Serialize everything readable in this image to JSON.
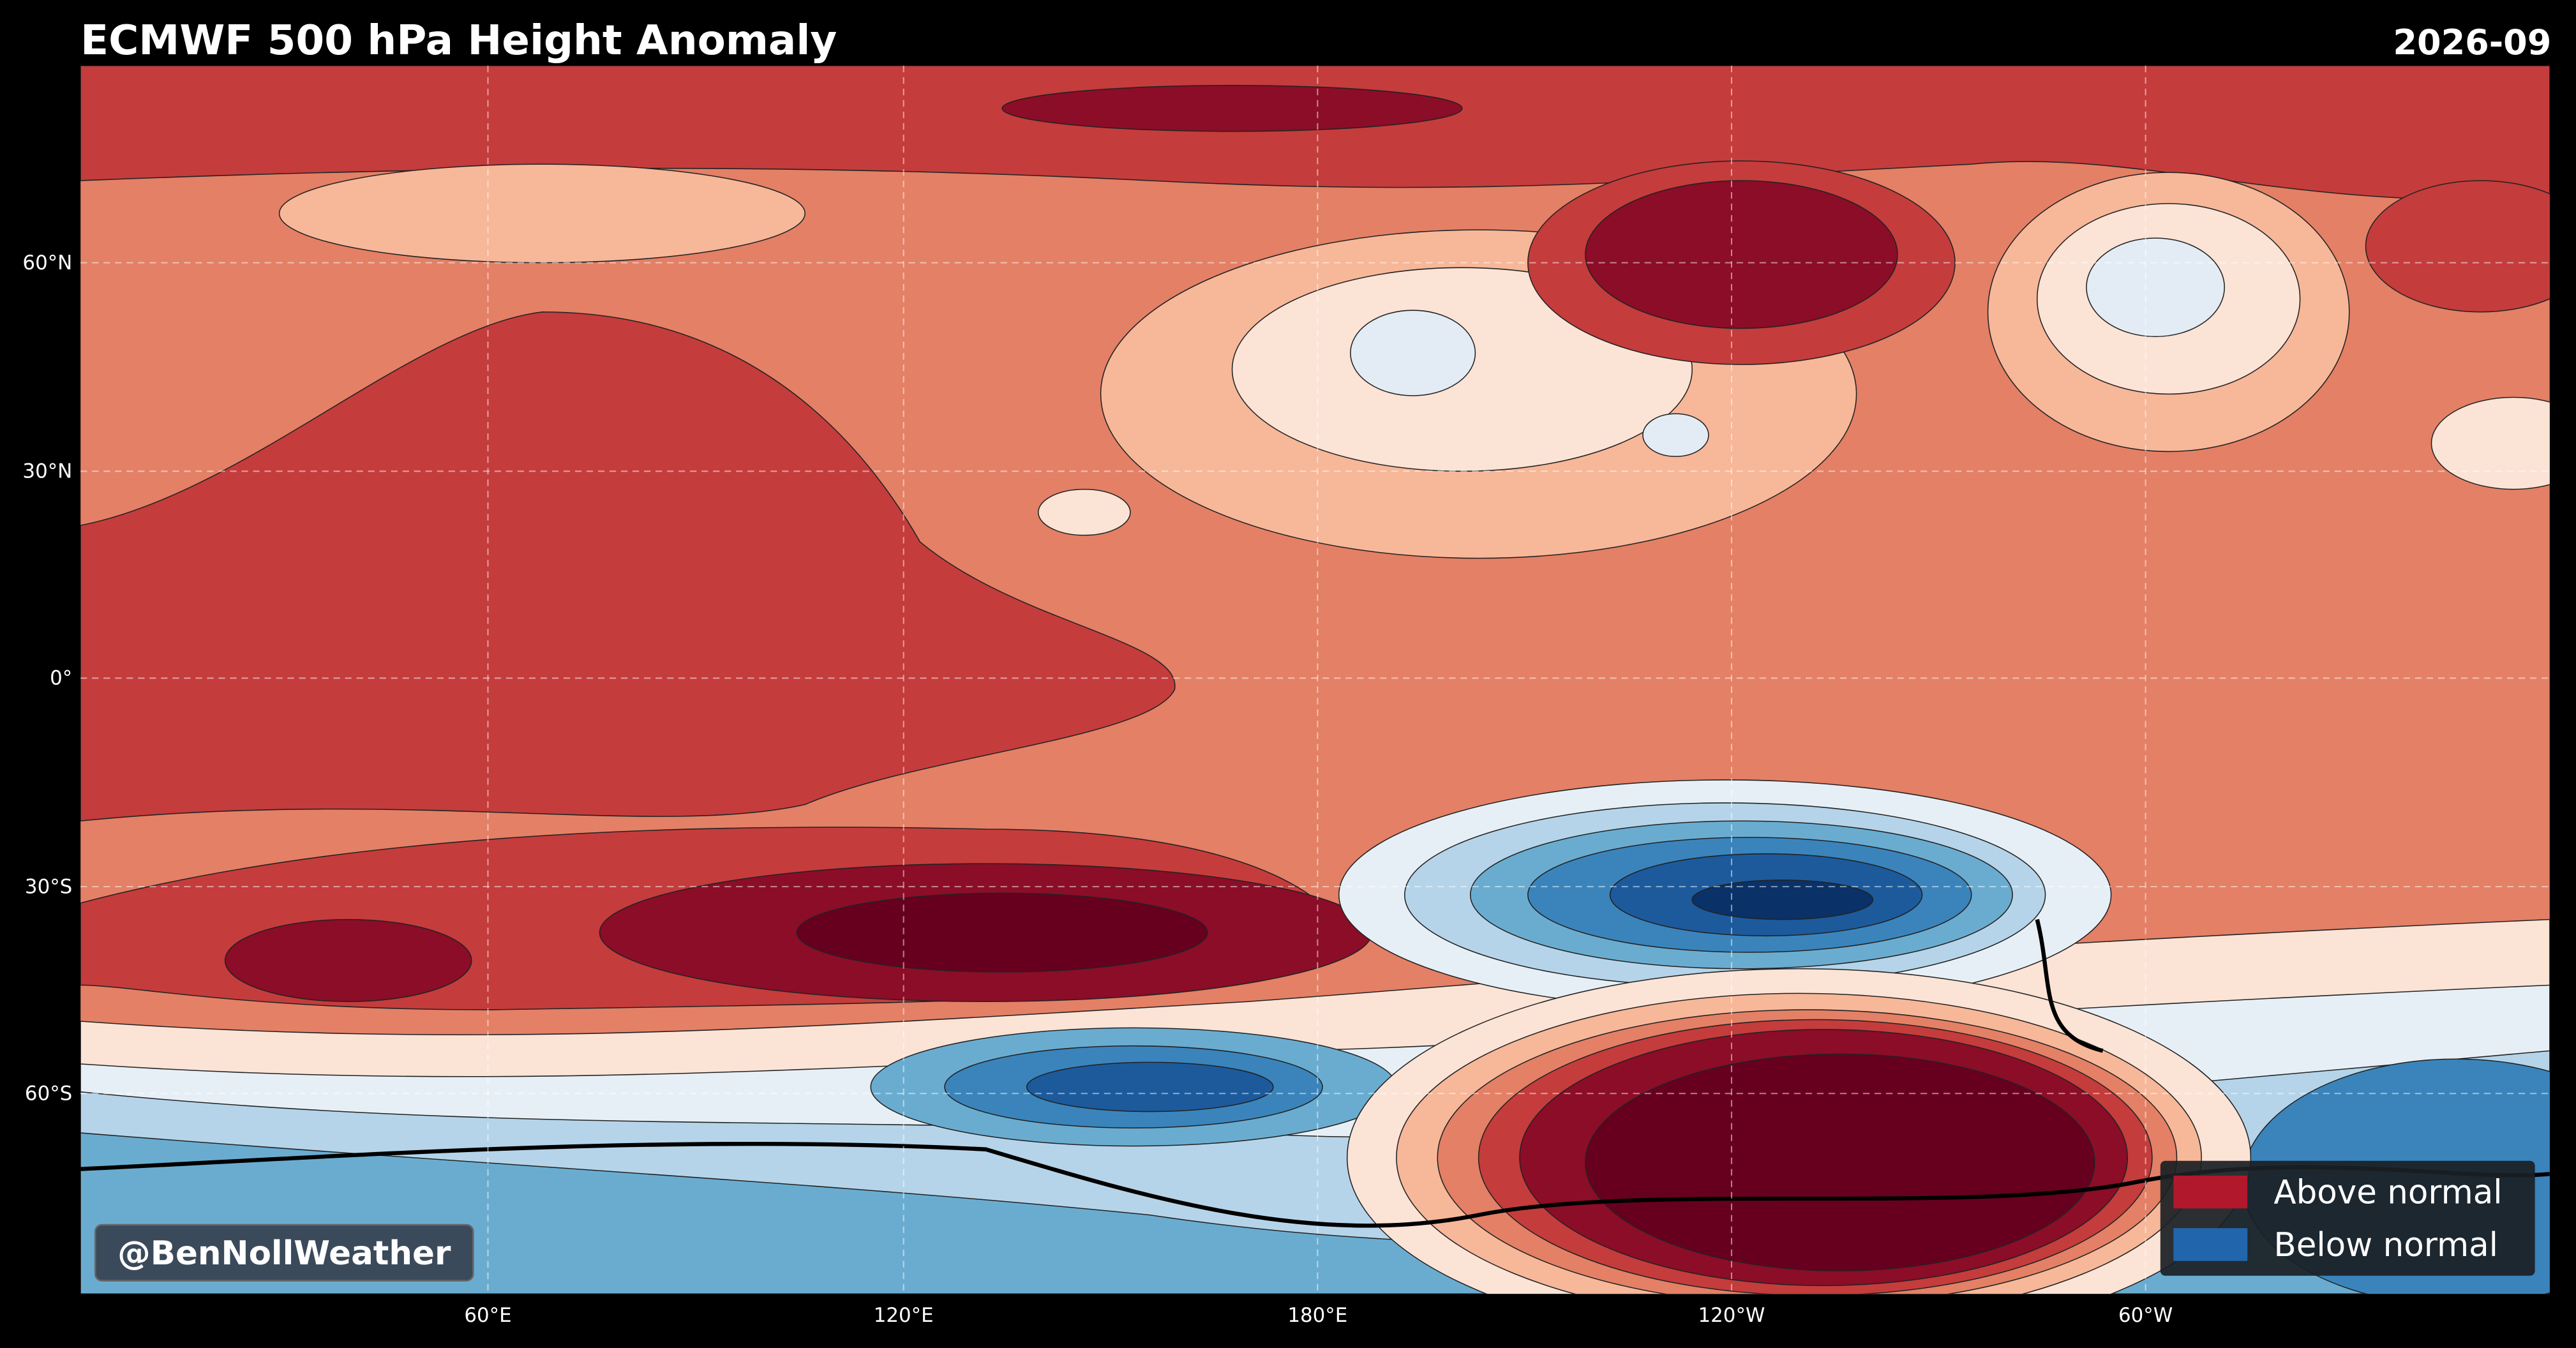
{
  "header": {
    "title": "ECMWF 500 hPa Height Anomaly",
    "date": "2026-09"
  },
  "map": {
    "lat_labels": [
      "60°N",
      "30°N",
      "0°",
      "30°S",
      "60°S"
    ],
    "lon_labels": [
      "60°E",
      "120°E",
      "180°E",
      "120°W",
      "60°W"
    ]
  },
  "legend": [
    {
      "label": "Above normal",
      "color": "#b2182b"
    },
    {
      "label": "Below normal",
      "color": "#2166ac"
    }
  ],
  "watermark": "@BenNollWeather"
}
